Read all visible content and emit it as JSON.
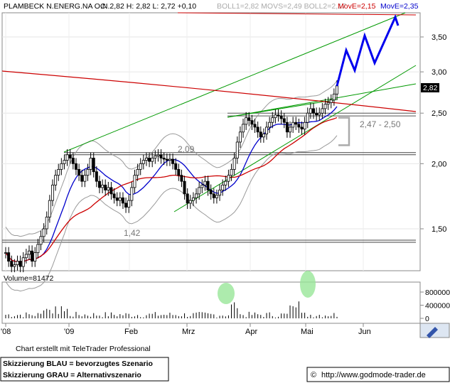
{
  "header": {
    "instrument": "PLAMBECK N.ENERG.NA O.N.",
    "quote": "C: 2,82 H: 2,82 L: 2,72 +0,10",
    "indicators": "BOLL1=2,82 MOVS=2,49 BOLL2=2,17",
    "move_red": "MovE=2,15",
    "move_blue": "MovE=2,35"
  },
  "price_label": "2,82",
  "volume_label": "Volume=81472",
  "annotations": {
    "level_209": "2,09",
    "range_label": "2,47 - 2,50",
    "level_142": "1,42"
  },
  "footer": {
    "credit": "Chart erstellt mit TeleTrader Professional",
    "legend_blue": "Skizzierung BLAU = bevorzugtes Szenario",
    "legend_grey": "Skizzierung GRAU = Alternativszenario",
    "copyright": "©",
    "url": "http://www.godmode-trader.de"
  },
  "colors": {
    "candles": "#000000",
    "moving_avg_red": "#cc0000",
    "moving_avg_blue": "#0000cc",
    "trend_lines": "#009900",
    "bollinger": "#999999",
    "scenario_blue": "#0000ee",
    "scenario_grey": "#aaaaaa",
    "volume_highlight": "#99e699"
  },
  "chart_data": {
    "type": "candlestick",
    "y_scale": "log",
    "ylim": [
      1.2,
      3.9
    ],
    "y_ticks": [
      "3,50",
      "3,00",
      "2,50",
      "2,00",
      "1,50"
    ],
    "y_tick_values": [
      3.5,
      3.0,
      2.5,
      2.0,
      1.5
    ],
    "x_ticks": [
      "'08",
      "'09",
      "Feb",
      "Mrz",
      "Apr",
      "Mai",
      "Jun"
    ],
    "horizontal_levels": [
      2.09,
      1.42
    ],
    "moving_average_red_last": 2.15,
    "moving_average_blue_last": 2.35,
    "last_close": 2.82,
    "close_series": [
      1.35,
      1.3,
      1.27,
      1.28,
      1.3,
      1.27,
      1.32,
      1.34,
      1.36,
      1.3,
      1.35,
      1.4,
      1.45,
      1.5,
      1.58,
      1.7,
      1.82,
      1.9,
      1.95,
      2.0,
      2.03,
      2.08,
      2.05,
      2.0,
      1.95,
      1.9,
      1.85,
      1.9,
      1.95,
      2.05,
      1.93,
      1.85,
      1.8,
      1.82,
      1.78,
      1.8,
      1.75,
      1.72,
      1.7,
      1.72,
      1.68,
      1.65,
      1.7,
      1.8,
      1.9,
      1.95,
      2.0,
      2.03,
      2.05,
      2.02,
      2.05,
      2.07,
      2.08,
      2.05,
      2.04,
      2.03,
      2.04,
      2.0,
      1.95,
      1.9,
      1.85,
      1.75,
      1.68,
      1.7,
      1.72,
      1.75,
      1.8,
      1.82,
      1.85,
      1.78,
      1.75,
      1.72,
      1.74,
      1.78,
      1.82,
      1.85,
      1.9,
      1.95,
      2.05,
      2.2,
      2.3,
      2.38,
      2.45,
      2.42,
      2.38,
      2.35,
      2.3,
      2.25,
      2.28,
      2.35,
      2.4,
      2.45,
      2.48,
      2.47,
      2.44,
      2.4,
      2.3,
      2.35,
      2.4,
      2.38,
      2.35,
      2.33,
      2.4,
      2.5,
      2.55,
      2.5,
      2.48,
      2.5,
      2.55,
      2.6,
      2.62,
      2.65,
      2.72,
      2.82
    ],
    "scenario_blue": [
      2.82,
      3.3,
      3.02,
      3.52,
      3.12,
      3.82,
      3.68
    ],
    "scenario_grey": [
      2.45,
      2.45,
      2.17,
      2.17
    ],
    "volume": {
      "y_ticks": [
        "800000",
        "400000",
        "0"
      ],
      "y_tick_values": [
        800000,
        400000,
        0
      ],
      "highlights": [
        "late March spike",
        "late April spike"
      ]
    }
  }
}
